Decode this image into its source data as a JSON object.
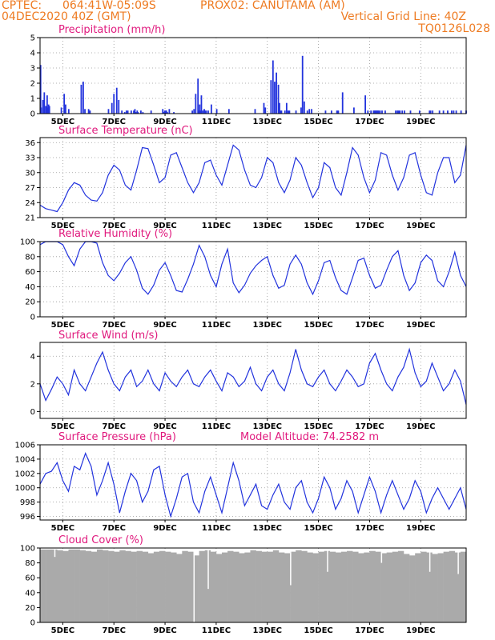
{
  "header": {
    "source": "CPTEC:",
    "coords": "064:41W-05:09S",
    "location": "PROX02: CANUTAMA (AM)",
    "date": "04DEC2020 40Z (GMT)",
    "grid_note": "Vertical Grid Line: 40Z",
    "model_code": "TQ0126L028"
  },
  "colors": {
    "header": "#ee7b22",
    "title": "#e0197d",
    "line": "#2233dd",
    "cloud": "#aaaaaa"
  },
  "chart_data": [
    {
      "type": "bar",
      "title": "Precipitation (mm/h)",
      "ylim": [
        0,
        5
      ],
      "yticks": [
        0,
        1,
        2,
        3,
        4,
        5
      ],
      "xlabels": [
        "5DEC",
        "7DEC",
        "9DEC",
        "11DEC",
        "13DEC",
        "15DEC",
        "17DEC",
        "19DEC"
      ],
      "x": [
        0.2,
        0.4,
        1.0,
        1.5,
        2.0,
        2.5,
        2.7,
        3.0,
        3.3,
        7.5,
        8.5,
        9.0,
        10.1,
        14.5,
        15.2,
        15.8,
        17.1,
        17.6,
        24.1,
        25.3,
        26.0,
        27.0,
        27.7,
        28.8,
        29.8,
        30.4,
        30.9,
        32.1,
        33.0,
        33.4,
        33.7,
        34.2,
        34.5,
        35.5,
        36.2,
        39.1,
        43.2,
        43.6,
        43.9,
        44.2,
        44.5,
        44.8,
        45.5,
        47.1,
        53.6,
        54.2,
        54.8,
        55.6,
        55.9,
        56.2,
        56.5,
        56.8,
        57.3,
        57.8,
        58.1,
        58.5,
        59.2,
        60.3,
        62.2,
        66.5,
        75.7,
        78.8,
        79.3,
        81.3,
        82.0,
        82.6,
        83.2,
        83.9,
        84.3,
        84.7,
        85.0,
        86.2,
        86.8,
        87.3,
        87.8,
        90.1,
        91.9,
        92.4,
        93.0,
        94.1,
        94.8,
        95.6,
        100.5,
        102.6,
        104.5,
        105.0,
        106.5,
        110.5,
        114.5,
        115.4,
        116.5,
        117.4,
        117.7,
        118.0,
        118.3,
        118.6,
        118.9,
        119.2,
        119.7,
        120.4,
        121.5,
        125.2,
        125.8,
        126.2,
        126.7,
        127.5,
        128.3,
        130.4,
        133.6,
        137.1,
        137.5,
        138.2,
        140.6,
        142.0,
        143.5,
        144.9,
        145.6,
        146.5,
        148.2,
        150.0
      ],
      "values": [
        3.2,
        0.4,
        0.9,
        1.4,
        0.5,
        1.2,
        0.4,
        0.6,
        0.5,
        0.4,
        1.3,
        0.6,
        0.3,
        1.9,
        2.1,
        0.3,
        0.3,
        0.2,
        0.3,
        0.7,
        1.3,
        1.7,
        0.9,
        0.2,
        0.1,
        0.2,
        0.2,
        0.2,
        0.2,
        0.3,
        0.1,
        0.2,
        0.1,
        0.2,
        0.1,
        0.2,
        0.3,
        0.1,
        0.2,
        0.2,
        0.2,
        0.1,
        0.3,
        0.1,
        0.2,
        0.3,
        1.3,
        2.3,
        0.2,
        0.6,
        0.2,
        1.2,
        0.2,
        0.3,
        0.2,
        0.2,
        0.2,
        0.6,
        0.3,
        0.3,
        0.3,
        0.7,
        0.4,
        2.2,
        3.5,
        2.1,
        2.7,
        1.9,
        0.7,
        0.2,
        0.2,
        0.2,
        0.7,
        0.2,
        0.2,
        0.2,
        0.4,
        3.8,
        0.8,
        0.2,
        0.3,
        0.3,
        0.2,
        0.2,
        0.2,
        0.2,
        1.4,
        0.4,
        1.2,
        0.2,
        0.2,
        0.2,
        0.2,
        0.2,
        0.2,
        0.2,
        0.2,
        0.2,
        0.2,
        0.2,
        0.2,
        0.2,
        0.2,
        0.2,
        0.2,
        0.2,
        0.2,
        0.2,
        0.2,
        0.2,
        0.2,
        0.2,
        0.2,
        0.2,
        0.2,
        0.2,
        0.2,
        0.2,
        0.2,
        0.2
      ]
    },
    {
      "type": "line",
      "title": "Surface Temperature (nC)",
      "ylim": [
        21,
        37
      ],
      "yticks": [
        21,
        24,
        27,
        30,
        33,
        36
      ],
      "xlabels": [
        "5DEC",
        "7DEC",
        "9DEC",
        "11DEC",
        "13DEC",
        "15DEC",
        "17DEC",
        "19DEC"
      ],
      "x": [
        0,
        2,
        4,
        6,
        8,
        10,
        12,
        14,
        16,
        18,
        20,
        22,
        24,
        26,
        28,
        30,
        32,
        34,
        36,
        38,
        40,
        42,
        44,
        46,
        48,
        50,
        52,
        54,
        56,
        58,
        60,
        62,
        64,
        66,
        68,
        70,
        72,
        74,
        76,
        78,
        80,
        82,
        84,
        86,
        88,
        90,
        92,
        94,
        96,
        98,
        100,
        102,
        104,
        106,
        108,
        110,
        112,
        114,
        116,
        118,
        120,
        122,
        124,
        126,
        128,
        130,
        132,
        134,
        136,
        138,
        140,
        142,
        144,
        146,
        148,
        150
      ],
      "values": [
        23.5,
        22.8,
        22.5,
        22.2,
        24.0,
        26.5,
        28.0,
        27.5,
        25.5,
        24.5,
        24.3,
        26.0,
        29.5,
        31.5,
        30.5,
        27.5,
        26.5,
        30.5,
        35.0,
        34.8,
        31.5,
        28.0,
        29.0,
        33.5,
        34.0,
        31.0,
        28.0,
        26.0,
        28.0,
        32.0,
        32.5,
        29.5,
        27.5,
        31.5,
        35.5,
        34.5,
        30.5,
        27.5,
        27.0,
        29.0,
        33.0,
        32.0,
        28.0,
        26.0,
        28.5,
        33.0,
        31.5,
        28.0,
        25.0,
        27.0,
        32.0,
        31.0,
        27.0,
        25.5,
        30.0,
        35.0,
        33.5,
        29.0,
        26.0,
        28.5,
        34.0,
        33.5,
        29.5,
        26.5,
        29.0,
        33.5,
        34.0,
        29.5,
        26.0,
        25.5,
        30.0,
        33.0,
        33.0,
        28.0,
        29.5,
        35.5
      ]
    },
    {
      "type": "line",
      "title": "Relative Humidity (%)",
      "ylim": [
        0,
        100
      ],
      "yticks": [
        0,
        20,
        40,
        60,
        80,
        100
      ],
      "xlabels": [
        "5DEC",
        "7DEC",
        "9DEC",
        "11DEC",
        "13DEC",
        "15DEC",
        "17DEC",
        "19DEC"
      ],
      "x": [
        0,
        2,
        4,
        6,
        8,
        10,
        12,
        14,
        16,
        18,
        20,
        22,
        24,
        26,
        28,
        30,
        32,
        34,
        36,
        38,
        40,
        42,
        44,
        46,
        48,
        50,
        52,
        54,
        56,
        58,
        60,
        62,
        64,
        66,
        68,
        70,
        72,
        74,
        76,
        78,
        80,
        82,
        84,
        86,
        88,
        90,
        92,
        94,
        96,
        98,
        100,
        102,
        104,
        106,
        108,
        110,
        112,
        114,
        116,
        118,
        120,
        122,
        124,
        126,
        128,
        130,
        132,
        134,
        136,
        138,
        140,
        142,
        144,
        146,
        148,
        150
      ],
      "values": [
        96,
        100,
        100,
        100,
        96,
        80,
        68,
        90,
        100,
        100,
        98,
        72,
        55,
        48,
        58,
        72,
        80,
        62,
        38,
        30,
        42,
        62,
        72,
        55,
        35,
        33,
        50,
        70,
        95,
        80,
        55,
        40,
        70,
        90,
        45,
        32,
        42,
        58,
        68,
        75,
        80,
        55,
        38,
        42,
        70,
        82,
        70,
        45,
        30,
        48,
        72,
        75,
        52,
        35,
        30,
        52,
        75,
        78,
        55,
        38,
        42,
        62,
        80,
        88,
        55,
        35,
        45,
        72,
        82,
        75,
        48,
        40,
        60,
        86,
        55,
        40
      ]
    },
    {
      "type": "line",
      "title": "Surface Wind (m/s)",
      "ylim": [
        -0.5,
        5
      ],
      "yticks": [
        0,
        2,
        4
      ],
      "xlabels": [
        "5DEC",
        "7DEC",
        "9DEC",
        "11DEC",
        "13DEC",
        "15DEC",
        "17DEC",
        "19DEC"
      ],
      "x": [
        0,
        2,
        4,
        6,
        8,
        10,
        12,
        14,
        16,
        18,
        20,
        22,
        24,
        26,
        28,
        30,
        32,
        34,
        36,
        38,
        40,
        42,
        44,
        46,
        48,
        50,
        52,
        54,
        56,
        58,
        60,
        62,
        64,
        66,
        68,
        70,
        72,
        74,
        76,
        78,
        80,
        82,
        84,
        86,
        88,
        90,
        92,
        94,
        96,
        98,
        100,
        102,
        104,
        106,
        108,
        110,
        112,
        114,
        116,
        118,
        120,
        122,
        124,
        126,
        128,
        130,
        132,
        134,
        136,
        138,
        140,
        142,
        144,
        146,
        148,
        150
      ],
      "values": [
        2.0,
        0.8,
        1.6,
        2.5,
        2.0,
        1.2,
        3.0,
        2.0,
        1.5,
        2.5,
        3.5,
        4.3,
        3.0,
        2.0,
        1.5,
        2.5,
        3.0,
        1.8,
        2.2,
        3.0,
        2.0,
        1.5,
        2.8,
        2.2,
        1.8,
        2.5,
        3.0,
        2.0,
        1.8,
        2.5,
        3.0,
        2.2,
        1.5,
        2.8,
        2.5,
        1.8,
        2.2,
        3.2,
        2.0,
        1.5,
        2.5,
        3.0,
        2.0,
        1.5,
        2.8,
        4.5,
        3.0,
        2.0,
        1.8,
        2.5,
        3.0,
        2.0,
        1.5,
        2.2,
        3.0,
        2.5,
        1.8,
        2.0,
        3.5,
        4.2,
        3.0,
        2.0,
        1.5,
        2.5,
        3.2,
        4.5,
        2.8,
        1.8,
        2.2,
        3.5,
        2.5,
        1.5,
        2.0,
        3.0,
        2.2,
        0.5
      ]
    },
    {
      "type": "line",
      "title": "Surface Pressure (hPa)",
      "subtitle": "Model Altitude: 74.2582 m",
      "ylim": [
        995.5,
        1006
      ],
      "yticks": [
        996,
        998,
        1000,
        1002,
        1004,
        1006
      ],
      "xlabels": [
        "5DEC",
        "7DEC",
        "9DEC",
        "11DEC",
        "13DEC",
        "15DEC",
        "17DEC",
        "19DEC"
      ],
      "x": [
        0,
        2,
        4,
        6,
        8,
        10,
        12,
        14,
        16,
        18,
        20,
        22,
        24,
        26,
        28,
        30,
        32,
        34,
        36,
        38,
        40,
        42,
        44,
        46,
        48,
        50,
        52,
        54,
        56,
        58,
        60,
        62,
        64,
        66,
        68,
        70,
        72,
        74,
        76,
        78,
        80,
        82,
        84,
        86,
        88,
        90,
        92,
        94,
        96,
        98,
        100,
        102,
        104,
        106,
        108,
        110,
        112,
        114,
        116,
        118,
        120,
        122,
        124,
        126,
        128,
        130,
        132,
        134,
        136,
        138,
        140,
        142,
        144,
        146,
        148,
        150
      ],
      "values": [
        1000.5,
        1002.0,
        1002.3,
        1003.5,
        1001.0,
        999.5,
        1003.0,
        1002.5,
        1004.8,
        1003.0,
        999.0,
        1001.0,
        1003.5,
        1000.5,
        996.5,
        999.5,
        1002.0,
        1001.0,
        998.0,
        999.5,
        1002.5,
        1003.0,
        999.0,
        996.0,
        998.5,
        1001.5,
        1002.0,
        998.0,
        996.5,
        999.5,
        1001.5,
        999.0,
        996.5,
        1000.0,
        1003.5,
        1001.0,
        997.5,
        999.0,
        1000.5,
        997.5,
        997.0,
        999.0,
        1000.5,
        998.0,
        997.0,
        1000.0,
        1001.0,
        998.0,
        996.5,
        998.5,
        1001.5,
        1000.0,
        997.0,
        998.5,
        1001.0,
        999.5,
        996.5,
        999.0,
        1001.5,
        999.5,
        996.5,
        999.0,
        1001.0,
        999.0,
        997.0,
        998.5,
        1001.0,
        999.5,
        996.5,
        998.5,
        1000.0,
        998.5,
        997.0,
        998.5,
        1000.0,
        997.0
      ]
    },
    {
      "type": "area",
      "title": "Cloud Cover (%)",
      "ylim": [
        0,
        100
      ],
      "yticks": [
        0,
        20,
        40,
        60,
        80,
        100
      ],
      "xlabels": [
        "5DEC",
        "7DEC",
        "9DEC",
        "11DEC",
        "13DEC",
        "15DEC",
        "17DEC",
        "19DEC"
      ],
      "x": [
        0,
        2,
        4,
        6,
        8,
        10,
        12,
        14,
        16,
        18,
        20,
        22,
        24,
        26,
        28,
        30,
        32,
        34,
        36,
        38,
        40,
        42,
        44,
        46,
        48,
        50,
        52,
        54,
        56,
        58,
        60,
        62,
        64,
        66,
        68,
        70,
        72,
        74,
        76,
        78,
        80,
        82,
        84,
        86,
        88,
        90,
        92,
        94,
        96,
        98,
        100,
        102,
        104,
        106,
        108,
        110,
        112,
        114,
        116,
        118,
        120,
        122,
        124,
        126,
        128,
        130,
        132,
        134,
        136,
        138,
        140,
        142,
        144,
        146,
        148,
        150
      ],
      "values": [
        98,
        98,
        98,
        97,
        96,
        98,
        98,
        97,
        96,
        95,
        98,
        97,
        96,
        95,
        97,
        96,
        95,
        96,
        95,
        93,
        95,
        96,
        95,
        94,
        92,
        96,
        95,
        90,
        96,
        97,
        95,
        92,
        94,
        96,
        95,
        93,
        94,
        97,
        96,
        95,
        95,
        97,
        94,
        93,
        95,
        97,
        96,
        94,
        93,
        95,
        96,
        95,
        94,
        95,
        96,
        95,
        93,
        94,
        96,
        95,
        93,
        94,
        95,
        96,
        92,
        90,
        93,
        95,
        94,
        92,
        93,
        95,
        96,
        94,
        95,
        97
      ],
      "dips": [
        {
          "x": 5,
          "y": 88
        },
        {
          "x": 54,
          "y": 0
        },
        {
          "x": 59,
          "y": 45
        },
        {
          "x": 88,
          "y": 50
        },
        {
          "x": 101,
          "y": 68
        },
        {
          "x": 120,
          "y": 80
        },
        {
          "x": 137,
          "y": 68
        },
        {
          "x": 147,
          "y": 65
        }
      ]
    }
  ]
}
